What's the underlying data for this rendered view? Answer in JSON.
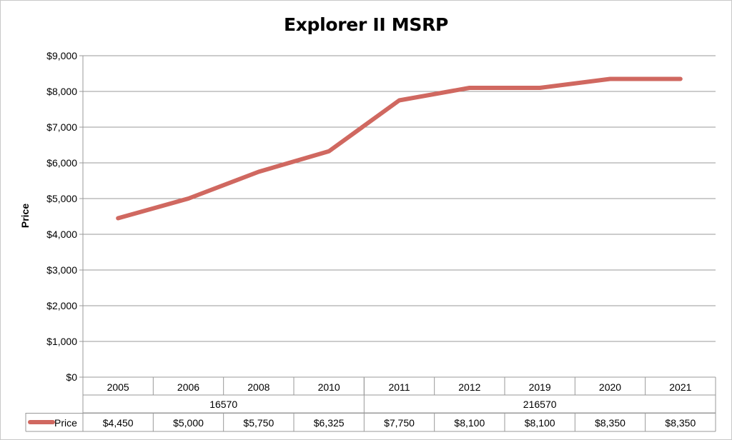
{
  "chart_data": {
    "type": "line",
    "title": "Explorer II MSRP",
    "xlabel": "",
    "ylabel": "Price",
    "categories": [
      "2005",
      "2006",
      "2008",
      "2010",
      "2011",
      "2012",
      "2019",
      "2020",
      "2021"
    ],
    "category_groups": [
      {
        "label": "16570",
        "span": 4
      },
      {
        "label": "216570",
        "span": 5
      }
    ],
    "series": [
      {
        "name": "Price",
        "values": [
          4450,
          5000,
          5750,
          6325,
          7750,
          8100,
          8100,
          8350,
          8350
        ],
        "value_labels": [
          "$4,450",
          "$5,000",
          "$5,750",
          "$6,325",
          "$7,750",
          "$8,100",
          "$8,100",
          "$8,350",
          "$8,350"
        ],
        "color": "#d06860"
      }
    ],
    "ylim": [
      0,
      9000
    ],
    "y_ticks": [
      0,
      1000,
      2000,
      3000,
      4000,
      5000,
      6000,
      7000,
      8000,
      9000
    ],
    "y_tick_labels": [
      "$0",
      "$1,000",
      "$2,000",
      "$3,000",
      "$4,000",
      "$5,000",
      "$6,000",
      "$7,000",
      "$8,000",
      "$9,000"
    ],
    "grid": true,
    "legend": "data-table",
    "gridline_color": "#999999"
  }
}
